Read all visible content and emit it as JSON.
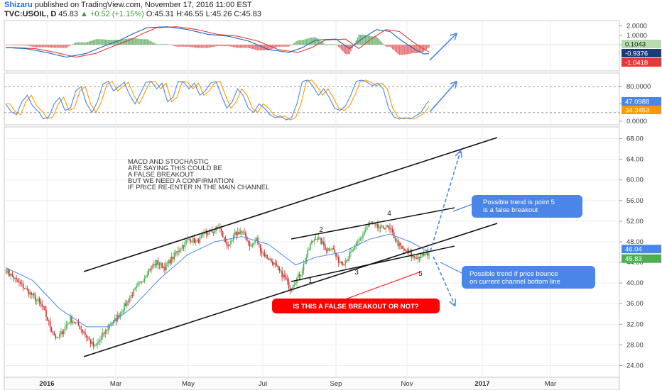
{
  "header": {
    "author": "Shizaru",
    "published": "published on TradingView.com, November 17, 2016 11:00 EST",
    "symbol": "TVC:USOIL, D",
    "last": "45.83",
    "change": "+0.52 (+1.15%)",
    "open": "O:45.31",
    "high": "H:46.55",
    "low": "L:45.26",
    "close": "C:45.83"
  },
  "colors": {
    "up_candle": "#4caf50",
    "down_candle": "#d32f2f",
    "ma_line": "#4a86e8",
    "macd_line": "#1565c0",
    "signal_line": "#e53935",
    "stoch_k": "#4a86e8",
    "stoch_d": "#ff9800",
    "arrow": "#4a86e8",
    "callout": "#4a86e8",
    "red_callout": "#ff0000"
  },
  "chart_data": {
    "type": "candlestick",
    "x_ticks": [
      "2016",
      "Mar",
      "May",
      "Jul",
      "Sep",
      "Nov",
      "2017",
      "Mar"
    ],
    "price_axis": {
      "ticks": [
        "24.00",
        "28.00",
        "32.00",
        "36.00",
        "40.00",
        "44.00",
        "48.00",
        "52.00",
        "56.00",
        "60.00",
        "64.00",
        "68.00"
      ],
      "range": [
        22,
        70
      ],
      "badges": {
        "ma": "46.04",
        "close": "45.83"
      }
    },
    "macd_axis": {
      "ticks": [
        "2.0000",
        "1.0000",
        "0.0000"
      ],
      "range": [
        -2.6,
        2.4
      ],
      "badges": {
        "hist": "0.1043",
        "macd": "-0.9376",
        "signal": "-1.0418"
      }
    },
    "stoch_axis": {
      "ticks": [
        "80.0000",
        "40.0000",
        "0.0000"
      ],
      "range": [
        -5,
        108
      ],
      "badges": {
        "k": "47.0988",
        "d": "34.3453"
      }
    },
    "price_anchors": [
      [
        0,
        42.5
      ],
      [
        6,
        41
      ],
      [
        12,
        39.5
      ],
      [
        18,
        38
      ],
      [
        24,
        36.5
      ],
      [
        28,
        35
      ],
      [
        33,
        31.5
      ],
      [
        38,
        29
      ],
      [
        43,
        31
      ],
      [
        48,
        33
      ],
      [
        53,
        32
      ],
      [
        58,
        30.5
      ],
      [
        63,
        28.5
      ],
      [
        66,
        27.5
      ],
      [
        70,
        29
      ],
      [
        76,
        31.5
      ],
      [
        82,
        33
      ],
      [
        88,
        35.5
      ],
      [
        94,
        38
      ],
      [
        100,
        40
      ],
      [
        106,
        42.5
      ],
      [
        112,
        44
      ],
      [
        118,
        43
      ],
      [
        124,
        45
      ],
      [
        130,
        47
      ],
      [
        136,
        48.5
      ],
      [
        142,
        48
      ],
      [
        148,
        49.5
      ],
      [
        154,
        50
      ],
      [
        158,
        51
      ],
      [
        162,
        48.5
      ],
      [
        166,
        47
      ],
      [
        170,
        49.5
      ],
      [
        174,
        50
      ],
      [
        178,
        49
      ],
      [
        182,
        47
      ],
      [
        186,
        48.5
      ],
      [
        190,
        46
      ],
      [
        194,
        45
      ],
      [
        198,
        44
      ],
      [
        202,
        42.5
      ],
      [
        207,
        41
      ],
      [
        211,
        39
      ],
      [
        215,
        40.5
      ],
      [
        219,
        42
      ],
      [
        223,
        45
      ],
      [
        226,
        47.5
      ],
      [
        230,
        49
      ],
      [
        234,
        48
      ],
      [
        238,
        46.5
      ],
      [
        242,
        47
      ],
      [
        246,
        44.5
      ],
      [
        250,
        44
      ],
      [
        254,
        45
      ],
      [
        258,
        46.5
      ],
      [
        262,
        48
      ],
      [
        266,
        50
      ],
      [
        270,
        51.5
      ],
      [
        274,
        51
      ],
      [
        278,
        50.5
      ],
      [
        282,
        51
      ],
      [
        286,
        50
      ],
      [
        290,
        48
      ],
      [
        294,
        46.5
      ],
      [
        298,
        46
      ],
      [
        302,
        45
      ],
      [
        306,
        45
      ],
      [
        310,
        45.5
      ],
      [
        314,
        45.83
      ]
    ],
    "ma_anchors": [
      [
        0,
        43
      ],
      [
        20,
        40.5
      ],
      [
        40,
        35
      ],
      [
        60,
        31.5
      ],
      [
        75,
        31.5
      ],
      [
        95,
        35.5
      ],
      [
        115,
        41
      ],
      [
        135,
        45.5
      ],
      [
        155,
        48
      ],
      [
        175,
        49
      ],
      [
        195,
        47.5
      ],
      [
        215,
        43.5
      ],
      [
        230,
        45
      ],
      [
        250,
        46
      ],
      [
        270,
        48.5
      ],
      [
        285,
        49.5
      ],
      [
        300,
        48
      ],
      [
        314,
        46.04
      ]
    ],
    "macd_anchors": [
      [
        0,
        -0.3
      ],
      [
        15,
        -0.4
      ],
      [
        30,
        -0.8
      ],
      [
        45,
        -1.3
      ],
      [
        60,
        -0.9
      ],
      [
        70,
        -0.3
      ],
      [
        85,
        0.5
      ],
      [
        95,
        1.2
      ],
      [
        105,
        1.8
      ],
      [
        120,
        1.9
      ],
      [
        135,
        1.6
      ],
      [
        150,
        1.1
      ],
      [
        165,
        0.9
      ],
      [
        180,
        0.4
      ],
      [
        195,
        -0.5
      ],
      [
        210,
        -0.8
      ],
      [
        220,
        -0.3
      ],
      [
        230,
        0.5
      ],
      [
        245,
        0.6
      ],
      [
        255,
        -0.4
      ],
      [
        265,
        0.7
      ],
      [
        275,
        1.6
      ],
      [
        285,
        1.4
      ],
      [
        295,
        0.3
      ],
      [
        305,
        -0.6
      ],
      [
        310,
        -0.95
      ],
      [
        314,
        -0.94
      ]
    ],
    "stoch_anchors": [
      [
        0,
        40
      ],
      [
        4,
        22
      ],
      [
        8,
        15
      ],
      [
        12,
        45
      ],
      [
        16,
        60
      ],
      [
        20,
        35
      ],
      [
        25,
        20
      ],
      [
        28,
        5
      ],
      [
        32,
        10
      ],
      [
        36,
        40
      ],
      [
        40,
        55
      ],
      [
        44,
        25
      ],
      [
        48,
        30
      ],
      [
        52,
        70
      ],
      [
        56,
        80
      ],
      [
        60,
        40
      ],
      [
        64,
        20
      ],
      [
        68,
        45
      ],
      [
        72,
        85
      ],
      [
        76,
        92
      ],
      [
        80,
        70
      ],
      [
        84,
        80
      ],
      [
        88,
        90
      ],
      [
        92,
        60
      ],
      [
        96,
        40
      ],
      [
        100,
        65
      ],
      [
        104,
        90
      ],
      [
        108,
        92
      ],
      [
        112,
        75
      ],
      [
        116,
        88
      ],
      [
        120,
        45
      ],
      [
        124,
        55
      ],
      [
        128,
        92
      ],
      [
        132,
        90
      ],
      [
        136,
        75
      ],
      [
        140,
        88
      ],
      [
        144,
        60
      ],
      [
        148,
        70
      ],
      [
        152,
        88
      ],
      [
        156,
        92
      ],
      [
        160,
        60
      ],
      [
        164,
        30
      ],
      [
        168,
        45
      ],
      [
        172,
        75
      ],
      [
        176,
        60
      ],
      [
        180,
        30
      ],
      [
        184,
        20
      ],
      [
        188,
        40
      ],
      [
        192,
        30
      ],
      [
        196,
        15
      ],
      [
        200,
        8
      ],
      [
        204,
        12
      ],
      [
        208,
        3
      ],
      [
        212,
        8
      ],
      [
        216,
        40
      ],
      [
        220,
        92
      ],
      [
        224,
        95
      ],
      [
        228,
        80
      ],
      [
        232,
        60
      ],
      [
        236,
        75
      ],
      [
        240,
        55
      ],
      [
        244,
        30
      ],
      [
        248,
        25
      ],
      [
        252,
        35
      ],
      [
        256,
        60
      ],
      [
        260,
        92
      ],
      [
        264,
        95
      ],
      [
        268,
        90
      ],
      [
        272,
        82
      ],
      [
        276,
        88
      ],
      [
        280,
        75
      ],
      [
        284,
        30
      ],
      [
        288,
        10
      ],
      [
        292,
        5
      ],
      [
        296,
        8
      ],
      [
        300,
        5
      ],
      [
        304,
        12
      ],
      [
        308,
        20
      ],
      [
        312,
        40
      ],
      [
        314,
        47
      ]
    ],
    "annotations": {
      "note_lines": [
        "MACD AND STOCHASTIC",
        "ARE SAYING THIS COULD BE",
        "A FALSE BREAKOUT",
        "BUT WE NEED A CONFIRMATION",
        "IF PRICE RE-ENTER IN THE MAIN CHANNEL"
      ],
      "callout_top": [
        "Possible trend is point 5",
        "is a false breakout"
      ],
      "callout_bottom": [
        "Possible trend if price bounce",
        "on current channel bottom line"
      ],
      "red_callout": "IS THIS A FALSE BREAKOUT OR NOT?",
      "wave_labels": [
        "1",
        "2",
        "3",
        "4",
        "5"
      ]
    }
  }
}
